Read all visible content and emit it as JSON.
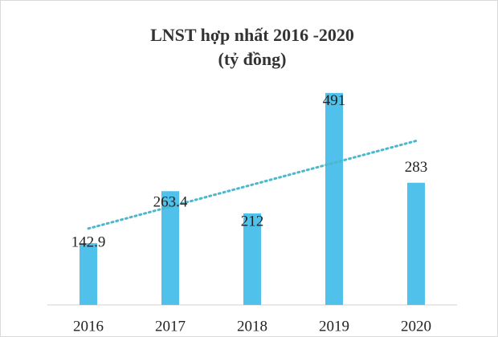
{
  "chart_data": {
    "type": "bar",
    "title": [
      "LNST hợp nhất 2016 -2020",
      "(tỷ đồng)"
    ],
    "categories": [
      "2016",
      "2017",
      "2018",
      "2019",
      "2020"
    ],
    "values": [
      142.9,
      263.4,
      212,
      491,
      283
    ],
    "color": "#4fc1ea",
    "ylim": [
      0,
      500
    ],
    "trendline": {
      "type": "linear",
      "color": "#4bb8cc"
    }
  }
}
